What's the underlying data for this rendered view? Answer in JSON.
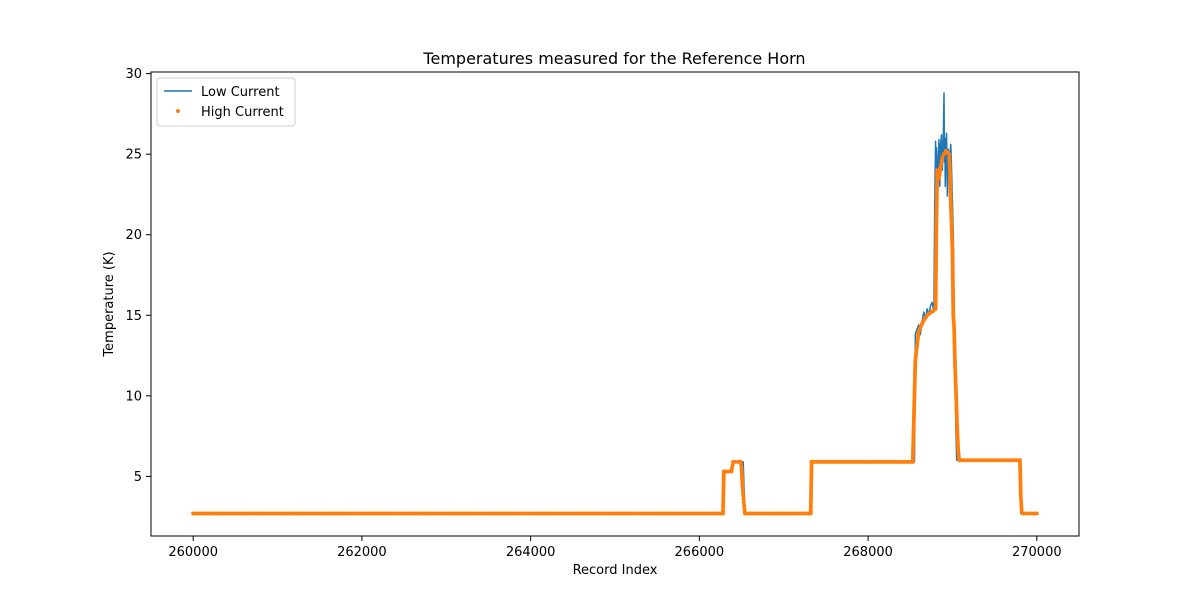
{
  "chart_data": {
    "type": "line",
    "title": "Temperatures measured for the Reference Horn",
    "xlabel": "Record Index",
    "ylabel": "Temperature (K)",
    "xlim": [
      259500,
      270500
    ],
    "ylim": [
      1.3,
      30.1
    ],
    "xticks": [
      260000,
      262000,
      264000,
      266000,
      268000,
      270000
    ],
    "xtick_labels": [
      "260000",
      "262000",
      "264000",
      "266000",
      "268000",
      "270000"
    ],
    "yticks": [
      5,
      10,
      15,
      20,
      25,
      30
    ],
    "ytick_labels": [
      "5",
      "10",
      "15",
      "20",
      "25",
      "30"
    ],
    "grid": false,
    "legend_position": "top-left",
    "series": [
      {
        "name": "Low Current",
        "style": "line",
        "color": "#1f77b4",
        "x": [
          260000,
          266280,
          266285,
          266290,
          266380,
          266400,
          266500,
          266520,
          266540,
          266560,
          267320,
          267325,
          267330,
          268550,
          268560,
          268570,
          268600,
          268620,
          268640,
          268660,
          268680,
          268700,
          268720,
          268740,
          268760,
          268780,
          268790,
          268800,
          268805,
          268810,
          268820,
          268830,
          268840,
          268850,
          268860,
          268870,
          268880,
          268890,
          268900,
          268905,
          268910,
          268915,
          268920,
          268930,
          268940,
          268950,
          268960,
          268970,
          268980,
          268990,
          269000,
          269010,
          269020,
          269030,
          269040,
          269050,
          269060,
          269080,
          269800,
          269810,
          269820,
          269830,
          270000
        ],
        "y": [
          2.7,
          2.7,
          5.3,
          5.3,
          5.3,
          5.9,
          5.9,
          5.9,
          2.7,
          2.7,
          2.7,
          5.9,
          5.9,
          5.9,
          13.8,
          14.0,
          14.4,
          13.8,
          14.6,
          15.2,
          14.8,
          15.4,
          15.0,
          15.6,
          15.8,
          15.2,
          22.0,
          25.8,
          22.5,
          25.4,
          23.5,
          24.6,
          25.9,
          23.0,
          25.6,
          26.2,
          24.0,
          25.5,
          28.8,
          24.5,
          26.0,
          23.0,
          24.8,
          26.3,
          22.4,
          25.3,
          24.2,
          25.0,
          25.6,
          24.0,
          22.0,
          20.0,
          15.0,
          12.0,
          8.0,
          6.0,
          6.0,
          6.0,
          6.0,
          2.7,
          2.7,
          2.7,
          2.7
        ]
      },
      {
        "name": "High Current",
        "style": "scatter",
        "color": "#ff7f0e",
        "x": [
          260000,
          266000,
          266280,
          266290,
          266380,
          266400,
          266490,
          266500,
          266510,
          266520,
          266530,
          266540,
          266550,
          267300,
          267320,
          267330,
          268530,
          268560,
          268600,
          268650,
          268700,
          268750,
          268800,
          268810,
          268820,
          268840,
          268860,
          268880,
          268900,
          268920,
          268940,
          268960,
          268970,
          268980,
          268990,
          269000,
          269010,
          269020,
          269030,
          269040,
          269050,
          269060,
          269070,
          269080,
          269790,
          269800,
          269810,
          269820,
          269830,
          270000
        ],
        "y": [
          2.7,
          2.7,
          2.7,
          5.3,
          5.3,
          5.9,
          5.9,
          5.5,
          4.5,
          3.8,
          3.2,
          2.7,
          2.7,
          2.7,
          2.7,
          5.9,
          5.9,
          12.2,
          14.0,
          14.6,
          15.0,
          15.2,
          15.4,
          21.0,
          24.0,
          23.5,
          24.2,
          24.8,
          25.0,
          25.2,
          25.1,
          25.0,
          24.0,
          22.0,
          20.5,
          19.0,
          15.0,
          14.2,
          12.0,
          10.5,
          9.0,
          7.5,
          6.5,
          6.0,
          6.0,
          6.0,
          3.8,
          2.9,
          2.7,
          2.7
        ]
      }
    ]
  }
}
